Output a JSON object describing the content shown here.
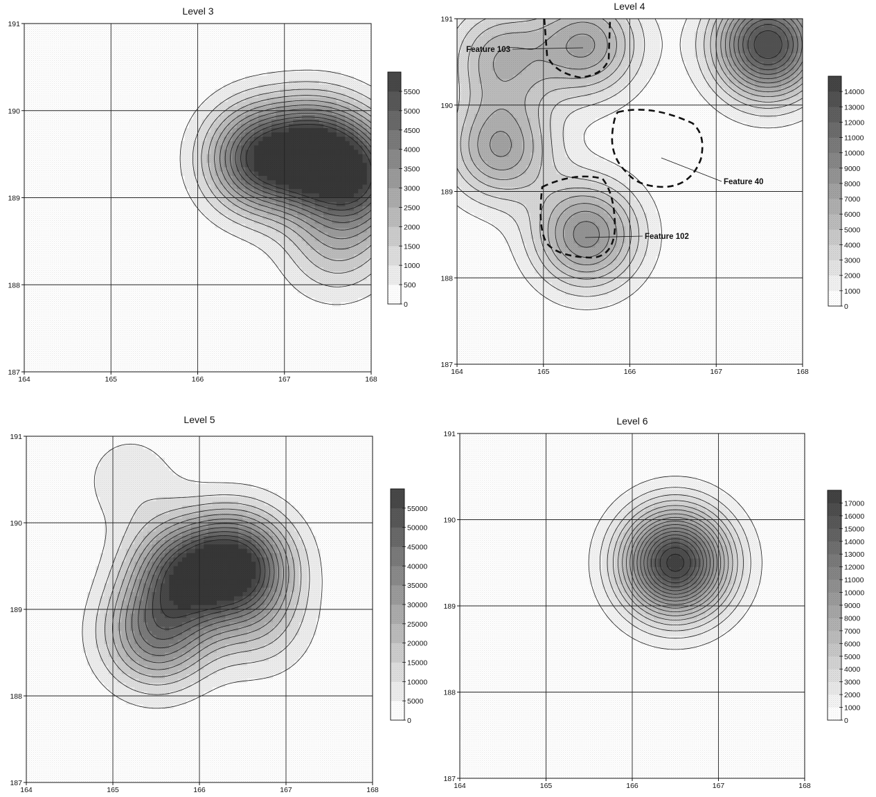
{
  "chart_data": [
    {
      "type": "heatmap",
      "title": "Level 3",
      "x_ticks": [
        "164",
        "165",
        "166",
        "167",
        "168"
      ],
      "y_ticks": [
        "187",
        "188",
        "189",
        "190",
        "191"
      ],
      "xlim": [
        164,
        168
      ],
      "ylim": [
        187,
        191
      ],
      "grid": true,
      "colorbar": {
        "min": 0,
        "max": 6000,
        "step": 500,
        "labels": [
          "0",
          "500",
          "1000",
          "1500",
          "2000",
          "2500",
          "3000",
          "3500",
          "4000",
          "4500",
          "5000",
          "5500"
        ]
      },
      "peaks": [
        {
          "x": 167.4,
          "y": 189.5,
          "value": 5600
        },
        {
          "x": 166.7,
          "y": 189.45,
          "value": 5000
        },
        {
          "x": 167.9,
          "y": 189.2,
          "value": 3800
        },
        {
          "x": 167.6,
          "y": 188.45,
          "value": 1800
        }
      ],
      "annotations": []
    },
    {
      "type": "heatmap",
      "title": "Level 4",
      "x_ticks": [
        "164",
        "165",
        "166",
        "167",
        "168"
      ],
      "y_ticks": [
        "187",
        "188",
        "189",
        "190",
        "191"
      ],
      "xlim": [
        164,
        168
      ],
      "ylim": [
        187,
        191
      ],
      "grid": true,
      "colorbar": {
        "min": 0,
        "max": 15000,
        "step": 1000,
        "labels": [
          "0",
          "1000",
          "2000",
          "3000",
          "4000",
          "5000",
          "6000",
          "7000",
          "8000",
          "9000",
          "10000",
          "11000",
          "12000",
          "13000",
          "14000"
        ]
      },
      "peaks": [
        {
          "x": 167.6,
          "y": 190.7,
          "value": 14000
        },
        {
          "x": 165.5,
          "y": 190.7,
          "value": 7000
        },
        {
          "x": 164.5,
          "y": 189.5,
          "value": 7000
        },
        {
          "x": 165.5,
          "y": 188.5,
          "value": 8500
        },
        {
          "x": 164.5,
          "y": 190.55,
          "value": 5500
        },
        {
          "x": 165.5,
          "y": 189.5,
          "value": 0
        }
      ],
      "annotations": [
        {
          "text": "Feature 103",
          "x": 164.35,
          "y": 190.65
        },
        {
          "text": "Feature 40",
          "x": 167.1,
          "y": 189.1
        },
        {
          "text": "Feature 102",
          "x": 166.2,
          "y": 188.45
        }
      ]
    },
    {
      "type": "heatmap",
      "title": "Level 5",
      "x_ticks": [
        "164",
        "165",
        "166",
        "167",
        "168"
      ],
      "y_ticks": [
        "187",
        "188",
        "189",
        "190",
        "191"
      ],
      "xlim": [
        164,
        168
      ],
      "ylim": [
        187,
        191
      ],
      "grid": true,
      "colorbar": {
        "min": 0,
        "max": 60000,
        "step": 5000,
        "labels": [
          "0",
          "5000",
          "10000",
          "15000",
          "20000",
          "25000",
          "30000",
          "35000",
          "40000",
          "45000",
          "50000",
          "55000"
        ]
      },
      "peaks": [
        {
          "x": 166.45,
          "y": 189.5,
          "value": 57000
        },
        {
          "x": 165.8,
          "y": 189.4,
          "value": 43000
        },
        {
          "x": 165.5,
          "y": 188.7,
          "value": 37000
        },
        {
          "x": 166.7,
          "y": 188.8,
          "value": 12000
        },
        {
          "x": 165.2,
          "y": 190.5,
          "value": 8000
        }
      ],
      "annotations": []
    },
    {
      "type": "heatmap",
      "title": "Level 6",
      "x_ticks": [
        "164",
        "165",
        "166",
        "167",
        "168"
      ],
      "y_ticks": [
        "187",
        "188",
        "189",
        "190",
        "191"
      ],
      "xlim": [
        164,
        168
      ],
      "ylim": [
        187,
        191
      ],
      "grid": true,
      "colorbar": {
        "min": 0,
        "max": 18000,
        "step": 1000,
        "labels": [
          "0",
          "1000",
          "2000",
          "3000",
          "4000",
          "5000",
          "6000",
          "7000",
          "8000",
          "9000",
          "10000",
          "11000",
          "12000",
          "13000",
          "14000",
          "15000",
          "16000",
          "17000"
        ]
      },
      "peaks": [
        {
          "x": 166.5,
          "y": 189.5,
          "value": 17500
        }
      ],
      "annotations": []
    }
  ]
}
